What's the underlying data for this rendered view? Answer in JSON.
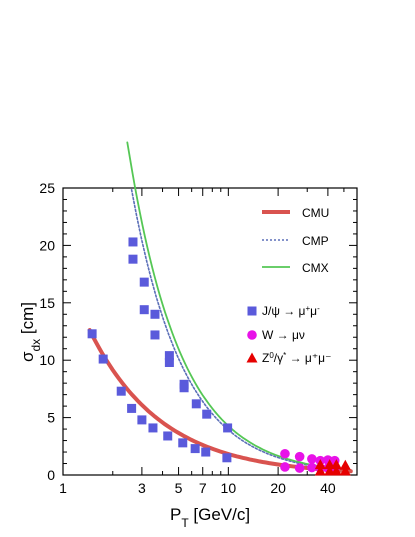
{
  "chart_data": {
    "type": "scatter",
    "xscale": "log",
    "xlim": [
      1,
      60
    ],
    "ylim": [
      0,
      25
    ],
    "grid": false,
    "xlabel": {
      "main": "P",
      "sub": "T",
      "rest": " [GeV/c]"
    },
    "ylabel": {
      "main": "σ",
      "sub": "dx",
      "rest": " [cm]"
    },
    "x_ticks": [
      {
        "value": 1,
        "label": "1"
      },
      {
        "value": 3,
        "label": "3"
      },
      {
        "value": 5,
        "label": "5"
      },
      {
        "value": 7,
        "label": "7"
      },
      {
        "value": 10,
        "label": "10"
      },
      {
        "value": 20,
        "label": "20"
      },
      {
        "value": 40,
        "label": "40"
      }
    ],
    "x_minor_ticks": [
      2,
      4,
      6,
      8,
      9,
      30,
      50,
      60
    ],
    "y_ticks": [
      0,
      5,
      10,
      15,
      20,
      25
    ],
    "y_minor_step": 1,
    "curves": [
      {
        "key": "cmu",
        "name": "CMU",
        "color": "#d9534f",
        "width": 4,
        "dash": "",
        "a": 18.3,
        "p": 1.0,
        "b": 0.0,
        "xmin": 1.45,
        "xmax": 55
      },
      {
        "key": "cmp",
        "name": "CMP",
        "color": "#5b6fb8",
        "width": 1.6,
        "dash": "2,2",
        "a": 92,
        "p": 1.37,
        "b": 0.0,
        "xmin": 2.6,
        "xmax": 40
      },
      {
        "key": "cmx",
        "name": "CMX",
        "color": "#55c755",
        "width": 1.8,
        "dash": "",
        "a": 98,
        "p": 1.36,
        "b": 0.0,
        "xmin": 2.45,
        "xmax": 40
      }
    ],
    "series": [
      {
        "key": "jpsi",
        "marker": "square",
        "color": "#5a5adb",
        "legend": {
          "pre": "J/ψ → μ",
          "sup1": "+",
          "mid": "μ",
          "sup2": "-",
          "post": ""
        },
        "points": [
          [
            1.5,
            12.3
          ],
          [
            1.75,
            10.1
          ],
          [
            2.25,
            7.3
          ],
          [
            2.6,
            5.8
          ],
          [
            3.0,
            4.8
          ],
          [
            3.5,
            4.1
          ],
          [
            4.3,
            3.4
          ],
          [
            5.3,
            2.8
          ],
          [
            6.3,
            2.3
          ],
          [
            7.3,
            2.0
          ],
          [
            9.8,
            1.5
          ],
          [
            2.65,
            20.3
          ],
          [
            2.65,
            18.8
          ],
          [
            3.1,
            16.8
          ],
          [
            3.1,
            14.4
          ],
          [
            3.6,
            14.0
          ],
          [
            3.6,
            12.2
          ],
          [
            4.4,
            10.4
          ],
          [
            4.4,
            9.8
          ],
          [
            5.4,
            7.9
          ],
          [
            5.4,
            7.6
          ],
          [
            6.4,
            6.2
          ],
          [
            7.4,
            5.3
          ],
          [
            9.9,
            4.1
          ]
        ]
      },
      {
        "key": "w",
        "marker": "circle",
        "color": "#e812e8",
        "legend": {
          "pre": "W → μν",
          "sup1": "",
          "mid": "",
          "sup2": "",
          "post": ""
        },
        "points": [
          [
            22,
            1.85
          ],
          [
            22,
            0.7
          ],
          [
            27,
            1.6
          ],
          [
            27,
            0.6
          ],
          [
            32,
            1.4
          ],
          [
            32,
            0.65
          ],
          [
            36,
            1.25
          ],
          [
            36,
            0.6
          ],
          [
            40,
            1.3
          ],
          [
            40,
            0.6
          ],
          [
            44,
            1.25
          ],
          [
            44,
            0.55
          ]
        ]
      },
      {
        "key": "z",
        "marker": "triangle",
        "color": "#e60000",
        "legend": {
          "pre": "Z",
          "sup1": "0",
          "mid": "/γ",
          "sup2": "*",
          "post": " → μ⁺μ⁻"
        },
        "points": [
          [
            36,
            0.9
          ],
          [
            36,
            0.35
          ],
          [
            41,
            0.9
          ],
          [
            41,
            0.35
          ],
          [
            45,
            0.9
          ],
          [
            45,
            0.35
          ],
          [
            51,
            0.85
          ],
          [
            51,
            0.35
          ]
        ]
      }
    ]
  }
}
